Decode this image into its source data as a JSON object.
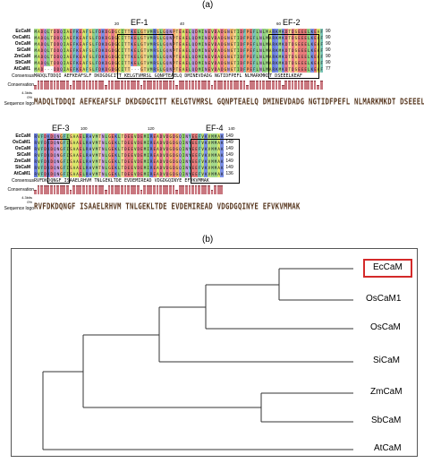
{
  "panel_a": {
    "label": "(a)",
    "ef_labels": [
      "EF-1",
      "EF-2",
      "EF-3",
      "EF-4"
    ],
    "position_ticks_top": [
      "20",
      "40",
      "60"
    ],
    "position_ticks_bottom": [
      "100",
      "120",
      "140"
    ],
    "sequences": [
      "EcCaM",
      "OsCaM1",
      "OsCaM",
      "SiCaM",
      "ZmCaM",
      "SbCaM",
      "AtCaM1"
    ],
    "block1_end_numbers": [
      "90",
      "90",
      "90",
      "90",
      "90",
      "90",
      "77"
    ],
    "block2_end_numbers": [
      "149",
      "149",
      "149",
      "149",
      "149",
      "149",
      "136"
    ],
    "meta_labels": {
      "consensus": "Consensus",
      "conservation": "Conservation",
      "logo": "Sequence logo",
      "scale_top": "4.3bits",
      "scale_bottom": "0%"
    },
    "block1_consensus": "MADQLTDDQI AEFKEAFSLF DKDGDGCITT KELGTVMRSL GQNPTEAELQ DMINEVDADG NGTIDFPEFL NLMARKMKDT DSEEELKEAF",
    "block2_consensus": "RVFDKDQNGF ISAAELRHVM TNLGEKLTDE EVDEMIREAD VDGDGQINYE EFVKVMMAK",
    "block1_logo": "MADQLTDDQI AEFKEAFSLF DKDGDGCITT KELGTVMRSL GQNPTEAELQ DMINEVDADG NGTIDFPEFL NLMARKMKDT DSEEELKEAF",
    "block2_logo": "RVFDKDQNGF ISAAELRHVM TNLGEKLTDE EVDEMIREAD VDGDGQINYE EFVKVMMAK"
  },
  "panel_b": {
    "label": "(b)",
    "taxa": [
      "EcCaM",
      "OsCaM1",
      "OsCaM",
      "SiCaM",
      "ZmCaM",
      "SbCaM",
      "AtCaM"
    ],
    "highlighted_taxon": "EcCaM",
    "highlight_color": "#d42a2a"
  },
  "residue_colors": {
    "A": "#d9e86a",
    "V": "#bfe07a",
    "I": "#95d36b",
    "L": "#8fd07f",
    "M": "#a4d98c",
    "F": "#7ac3b8",
    "W": "#6bb0d6",
    "Y": "#78c7c9",
    "C": "#e9d46a",
    "G": "#f0b26b",
    "P": "#f2a16a",
    "S": "#f6c77a",
    "T": "#f3d58e",
    "N": "#c9a2e0",
    "Q": "#b89bdf",
    "D": "#e6798c",
    "E": "#e87b7b",
    "K": "#7b8fe6",
    "R": "#6b7fdd",
    "H": "#8fa8ea",
    "-": "#ffffff",
    " ": "#ffffff"
  }
}
